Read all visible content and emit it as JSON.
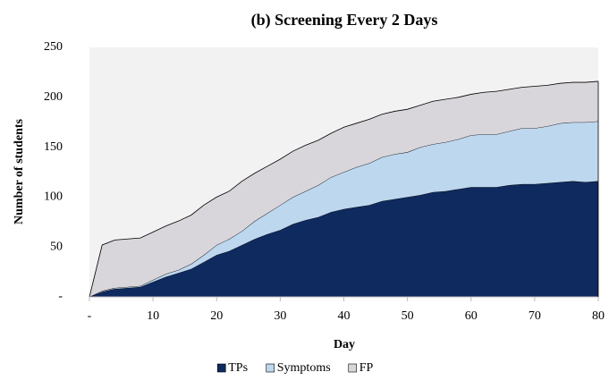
{
  "chart_data": {
    "type": "stacked_area",
    "title": "(b) Screening Every 2 Days",
    "xlabel": "Day",
    "ylabel": "Number of students",
    "x": [
      0,
      2,
      4,
      6,
      8,
      10,
      12,
      14,
      16,
      18,
      20,
      22,
      24,
      26,
      28,
      30,
      32,
      34,
      36,
      38,
      40,
      42,
      44,
      46,
      48,
      50,
      52,
      54,
      56,
      58,
      60,
      62,
      64,
      66,
      68,
      70,
      72,
      74,
      76,
      78,
      80
    ],
    "series": [
      {
        "name": "TPs",
        "color": "#0f2a5e",
        "values": [
          0,
          5,
          8,
          9,
          10,
          15,
          20,
          24,
          28,
          35,
          42,
          46,
          52,
          58,
          63,
          67,
          73,
          77,
          80,
          85,
          88,
          90,
          92,
          96,
          98,
          100,
          102,
          105,
          106,
          108,
          110,
          110,
          110,
          112,
          113,
          113,
          114,
          115,
          116,
          115,
          116
        ]
      },
      {
        "name": "Symptoms",
        "color": "#bdd7ee",
        "values": [
          0,
          1,
          1,
          1,
          1,
          2,
          3,
          3,
          5,
          7,
          10,
          12,
          14,
          18,
          21,
          25,
          27,
          29,
          32,
          35,
          37,
          40,
          42,
          44,
          45,
          45,
          48,
          48,
          49,
          50,
          52,
          53,
          53,
          54,
          56,
          56,
          57,
          59,
          59,
          60,
          60
        ]
      },
      {
        "name": "FP",
        "color": "#d9d6db",
        "values": [
          0,
          46,
          48,
          48,
          48,
          48,
          48,
          49,
          49,
          50,
          48,
          48,
          50,
          48,
          47,
          46,
          46,
          46,
          45,
          44,
          45,
          44,
          44,
          43,
          43,
          43,
          42,
          43,
          43,
          42,
          41,
          42,
          43,
          42,
          41,
          42,
          41,
          40,
          40,
          40,
          40
        ]
      }
    ],
    "xlim": [
      0,
      80
    ],
    "xticks": [
      {
        "value": 0,
        "label": "-"
      },
      10,
      20,
      30,
      40,
      50,
      60,
      70,
      80
    ],
    "ylim": [
      0,
      250
    ],
    "yticks": [
      {
        "value": 0,
        "label": "-"
      },
      50,
      100,
      150,
      200,
      250
    ],
    "grid": false,
    "legend": "bottom"
  }
}
